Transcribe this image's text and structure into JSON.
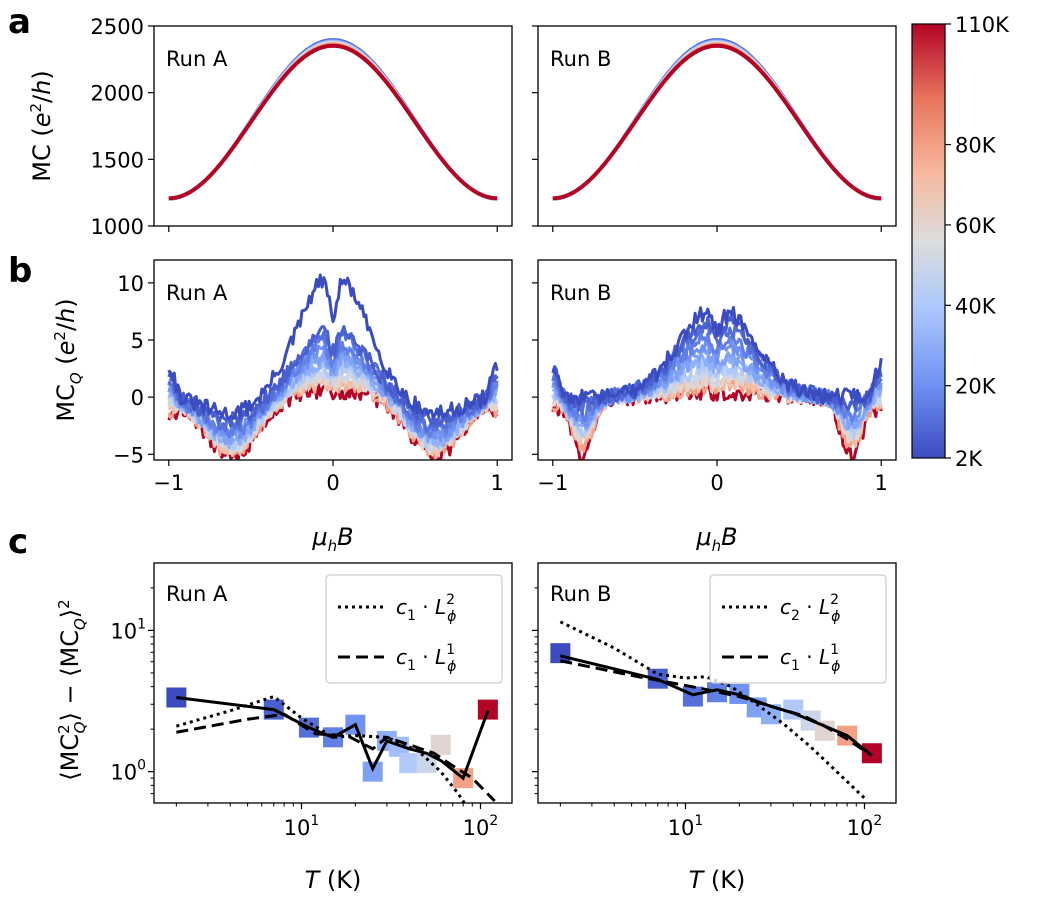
{
  "panel_letters": {
    "a": "a",
    "b": "b",
    "c": "c"
  },
  "colorbar": {
    "ticks": [
      "110K",
      "80K",
      "60K",
      "40K",
      "20K",
      "2K"
    ],
    "tick_values": [
      110,
      80,
      60,
      40,
      20,
      2
    ],
    "colors": [
      "#3b4cc0",
      "#6f92f3",
      "#aac7fd",
      "#dcdddd",
      "#f7b89c",
      "#e7745b",
      "#b40426"
    ]
  },
  "chart_data": [
    {
      "id": "a-left",
      "type": "line",
      "run_label": "Run A",
      "ylabel": "MC (e²/h)",
      "xlim": [
        -1,
        1
      ],
      "ylim": [
        1000,
        2500
      ],
      "yticks": [
        "1000",
        "1500",
        "2000",
        "2500"
      ],
      "ytick_values": [
        1000,
        1500,
        2000,
        2500
      ],
      "description_model": "MC = 1780 + 580*cos(pi*x)",
      "x": [
        -1,
        -0.5,
        0,
        0.5,
        1
      ],
      "series": [
        {
          "name": "2K",
          "values": [
            1210,
            1800,
            2400,
            1800,
            1210
          ]
        },
        {
          "name": "110K",
          "values": [
            1200,
            1780,
            2350,
            1780,
            1200
          ]
        }
      ]
    },
    {
      "id": "a-right",
      "type": "line",
      "run_label": "Run B",
      "xlim": [
        -1,
        1
      ],
      "ylim": [
        1000,
        2500
      ],
      "x": [
        -1,
        -0.5,
        0,
        0.5,
        1
      ],
      "series": [
        {
          "name": "2K",
          "values": [
            1210,
            1800,
            2400,
            1800,
            1210
          ]
        },
        {
          "name": "110K",
          "values": [
            1200,
            1780,
            2350,
            1780,
            1200
          ]
        }
      ]
    },
    {
      "id": "b-left",
      "type": "line",
      "run_label": "Run A",
      "ylabel": "MC_Q (e²/h)",
      "xlabel": "μ_hB",
      "xlim": [
        -1,
        1
      ],
      "ylim": [
        -5.5,
        12
      ],
      "xticks": [
        "−1",
        "0",
        "1"
      ],
      "xtick_values": [
        -1,
        0,
        1
      ],
      "yticks": [
        "−5",
        "0",
        "5",
        "10"
      ],
      "ytick_values": [
        -5,
        0,
        5,
        10
      ],
      "series_temps": [
        2,
        7,
        11,
        15,
        20,
        25,
        30,
        40,
        50,
        60,
        70,
        80,
        110
      ],
      "peak_values": [
        11,
        6.3,
        5.8,
        5.0,
        4.4,
        3.9,
        3.4,
        2.9,
        2.4,
        2.0,
        1.6,
        1.3,
        0.6
      ],
      "edge_values": [
        2.8,
        2.2,
        1.8,
        1.5,
        1.2,
        0.9,
        0.6,
        0.3,
        0.0,
        -0.3,
        -0.6,
        -0.9,
        -1.5
      ],
      "min_values": [
        -1.5,
        -2,
        -2.5,
        -3,
        -3.2,
        -3.5,
        -3.8,
        -4,
        -4.2,
        -4.4,
        -4.6,
        -4.8,
        -5.2
      ]
    },
    {
      "id": "b-right",
      "type": "line",
      "run_label": "Run B",
      "xlabel": "μ_hB",
      "xlim": [
        -1,
        1
      ],
      "ylim": [
        -5.5,
        12
      ],
      "xticks": [
        "−1",
        "0",
        "1"
      ],
      "xtick_values": [
        -1,
        0,
        1
      ],
      "series_temps": [
        2,
        7,
        11,
        15,
        20,
        25,
        30,
        40,
        50,
        60,
        70,
        80,
        110
      ],
      "peak_values": [
        8.0,
        7.2,
        6.5,
        5.6,
        4.8,
        4.0,
        3.4,
        2.8,
        2.2,
        1.7,
        1.3,
        1.0,
        0.5
      ],
      "edge_values": [
        2.8,
        2.4,
        2.0,
        1.7,
        1.4,
        1.1,
        0.8,
        0.5,
        0.2,
        -0.1,
        -0.4,
        -0.7,
        -1.0
      ],
      "min_values": [
        0,
        -0.5,
        -1,
        -1.5,
        -2,
        -2.3,
        -2.6,
        -2.9,
        -3.2,
        -3.5,
        -3.9,
        -4.3,
        -5.2
      ]
    },
    {
      "id": "c-left",
      "type": "scatter",
      "run_label": "Run A",
      "ylabel": "⟨MC_Q²⟩ − ⟨MC_Q⟩²",
      "xlabel": "T (K)",
      "xscale": "log",
      "yscale": "log",
      "xlim": [
        1.5,
        150
      ],
      "ylim": [
        0.6,
        30
      ],
      "xticks": [
        "10¹",
        "10²"
      ],
      "xtick_values": [
        10,
        100
      ],
      "yticks": [
        "10⁰",
        "10¹"
      ],
      "ytick_values": [
        1,
        10
      ],
      "x": [
        2,
        7,
        11,
        15,
        20,
        25,
        30,
        35,
        40,
        50,
        60,
        80,
        110
      ],
      "values": [
        3.35,
        2.75,
        2.05,
        1.75,
        2.15,
        1.0,
        1.65,
        1.5,
        1.15,
        1.15,
        1.55,
        0.9,
        2.75
      ],
      "solid_line": [
        [
          2,
          3.35
        ],
        [
          7,
          2.75
        ],
        [
          11,
          2.05
        ],
        [
          15,
          1.75
        ],
        [
          20,
          2.15
        ],
        [
          25,
          1.05
        ],
        [
          30,
          1.65
        ],
        [
          40,
          1.45
        ],
        [
          50,
          1.35
        ],
        [
          60,
          1.2
        ],
        [
          80,
          0.9
        ],
        [
          110,
          2.7
        ]
      ],
      "dotted_line": [
        [
          2,
          2.1
        ],
        [
          4,
          2.7
        ],
        [
          7,
          3.4
        ],
        [
          10,
          2.4
        ],
        [
          15,
          1.75
        ],
        [
          20,
          1.8
        ],
        [
          30,
          1.75
        ],
        [
          45,
          1.4
        ],
        [
          60,
          1.0
        ],
        [
          75,
          0.7
        ],
        [
          85,
          0.55
        ]
      ],
      "dashed_line": [
        [
          2,
          1.9
        ],
        [
          5,
          2.35
        ],
        [
          8,
          2.55
        ],
        [
          12,
          1.85
        ],
        [
          18,
          1.8
        ],
        [
          25,
          1.45
        ],
        [
          30,
          1.75
        ],
        [
          40,
          1.55
        ],
        [
          55,
          1.35
        ],
        [
          70,
          1.1
        ],
        [
          90,
          0.9
        ],
        [
          120,
          0.62
        ]
      ],
      "legend": [
        {
          "style": "dotted",
          "label": "c₁ · Lφ²",
          "coef": "c",
          "coef_sub": "1",
          "var": "L",
          "var_sub": "ϕ",
          "exp": "2"
        },
        {
          "style": "dashed",
          "label": "c₁ · Lφ¹",
          "coef": "c",
          "coef_sub": "1",
          "var": "L",
          "var_sub": "ϕ",
          "exp": "1"
        }
      ]
    },
    {
      "id": "c-right",
      "type": "scatter",
      "run_label": "Run B",
      "xlabel": "T (K)",
      "xscale": "log",
      "yscale": "log",
      "xlim": [
        1.5,
        150
      ],
      "ylim": [
        0.6,
        30
      ],
      "xticks": [
        "10¹",
        "10²"
      ],
      "xtick_values": [
        10,
        100
      ],
      "x": [
        2,
        7,
        11,
        15,
        20,
        25,
        30,
        40,
        50,
        60,
        80,
        110
      ],
      "values": [
        6.9,
        4.55,
        3.4,
        3.65,
        3.55,
        2.85,
        2.55,
        2.75,
        2.3,
        1.95,
        1.8,
        1.35
      ],
      "solid_line": [
        [
          2,
          6.6
        ],
        [
          7,
          4.5
        ],
        [
          11,
          3.5
        ],
        [
          15,
          3.8
        ],
        [
          20,
          3.5
        ],
        [
          30,
          2.9
        ],
        [
          40,
          2.6
        ],
        [
          60,
          2.1
        ],
        [
          80,
          1.8
        ],
        [
          110,
          1.3
        ]
      ],
      "dotted_line": [
        [
          2,
          11.5
        ],
        [
          4,
          7.5
        ],
        [
          7,
          4.9
        ],
        [
          10,
          4.6
        ],
        [
          13,
          4.7
        ],
        [
          18,
          4.0
        ],
        [
          25,
          3.0
        ],
        [
          35,
          2.2
        ],
        [
          50,
          1.5
        ],
        [
          70,
          1.0
        ],
        [
          100,
          0.65
        ]
      ],
      "dashed_line": [
        [
          2,
          6.1
        ],
        [
          5,
          4.8
        ],
        [
          8,
          4.3
        ],
        [
          12,
          3.9
        ],
        [
          20,
          3.4
        ],
        [
          30,
          2.9
        ],
        [
          45,
          2.5
        ],
        [
          60,
          2.1
        ],
        [
          80,
          1.7
        ],
        [
          110,
          1.3
        ]
      ],
      "legend": [
        {
          "style": "dotted",
          "label": "c₂ · Lφ²",
          "coef": "c",
          "coef_sub": "2",
          "var": "L",
          "var_sub": "ϕ",
          "exp": "2"
        },
        {
          "style": "dashed",
          "label": "c₁ · Lφ¹",
          "coef": "c",
          "coef_sub": "1",
          "var": "L",
          "var_sub": "ϕ",
          "exp": "1"
        }
      ]
    }
  ]
}
